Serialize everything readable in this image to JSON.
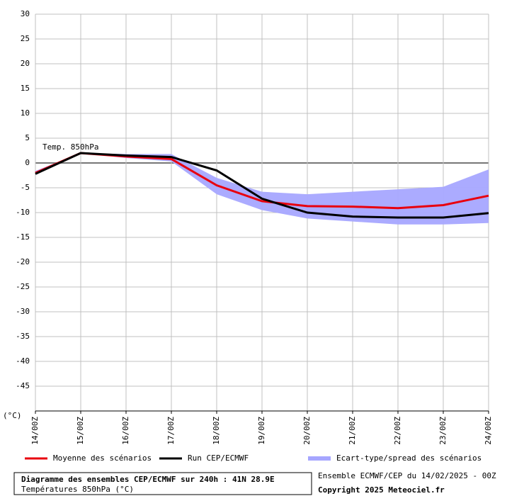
{
  "chart_data": {
    "type": "line",
    "annotation": "Temp. 850hPa",
    "y_unit_label": "(°C)",
    "title": "Diagramme des ensembles CEP/ECMWF sur 240h : 41N 28.9E",
    "subtitle": "Températures 850hPa (°C)",
    "run_info": "Ensemble ECMWF/CEP du 14/02/2025 - 00Z",
    "copyright": "Copyright 2025 Meteociel.fr",
    "categories": [
      "14/00Z",
      "15/00Z",
      "16/00Z",
      "17/00Z",
      "18/00Z",
      "19/00Z",
      "20/00Z",
      "21/00Z",
      "22/00Z",
      "23/00Z",
      "24/00Z"
    ],
    "band": {
      "name": "Ecart-type/spread des scénarios",
      "color": "#a6a6ff",
      "upper": [
        -1.6,
        2,
        1.8,
        1.8,
        -3.0,
        -5.8,
        -6.3,
        -5.8,
        -5.3,
        -4.8,
        -1.3
      ],
      "lower": [
        -2.4,
        2,
        1.0,
        0.3,
        -6.3,
        -9.5,
        -11.2,
        -11.8,
        -12.4,
        -12.4,
        -12.1
      ]
    },
    "series": [
      {
        "name": "Moyenne des scénarios",
        "color": "#e8000e",
        "values": [
          -2,
          2,
          1.3,
          0.8,
          -4.5,
          -7.7,
          -8.7,
          -8.8,
          -9.1,
          -8.5,
          -6.6
        ]
      },
      {
        "name": "Run CEP/ECMWF",
        "color": "#000000",
        "values": [
          -2.2,
          2,
          1.5,
          1.2,
          -1.5,
          -7.2,
          -10,
          -10.8,
          -11,
          -11,
          -10.1
        ]
      }
    ],
    "ylim": [
      -50,
      30
    ],
    "yticks": [
      30,
      25,
      20,
      15,
      10,
      5,
      0,
      -5,
      -10,
      -15,
      -20,
      -25,
      -30,
      -35,
      -40,
      -45
    ],
    "grid": true
  }
}
